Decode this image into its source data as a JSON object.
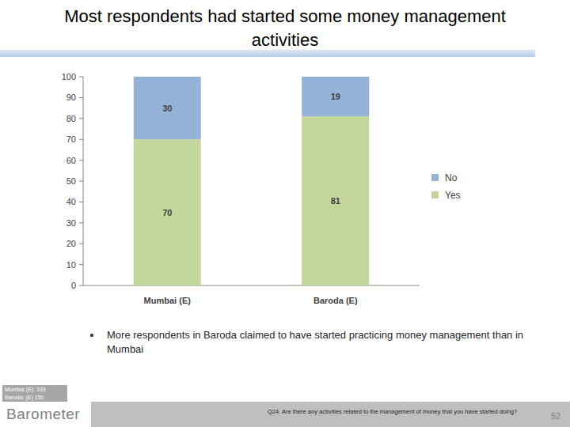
{
  "chart_data": {
    "type": "bar",
    "title": "Most respondents had started some money management activities",
    "categories": [
      "Mumbai (E)",
      "Baroda (E)"
    ],
    "series": [
      {
        "name": "Yes",
        "color": "#c3d69b",
        "values": [
          70,
          81
        ]
      },
      {
        "name": "No",
        "color": "#95b3d7",
        "values": [
          30,
          19
        ]
      }
    ],
    "stacked": true,
    "data_labels": true,
    "legend": "right",
    "grid": false,
    "ylim": [
      0,
      100
    ],
    "yticks": [
      0,
      10,
      20,
      30,
      40,
      50,
      60,
      70,
      80,
      90,
      100
    ]
  },
  "notes": {
    "bullet": "More respondents in Baroda claimed to have started practicing money management than in Mumbai",
    "base": [
      "Mumbai (E): 333",
      "Baroda: (E) 150"
    ],
    "question": "Q24. Are there any activities related to the management of money that you have started doing?",
    "page": 52,
    "logo": "Barometer"
  }
}
